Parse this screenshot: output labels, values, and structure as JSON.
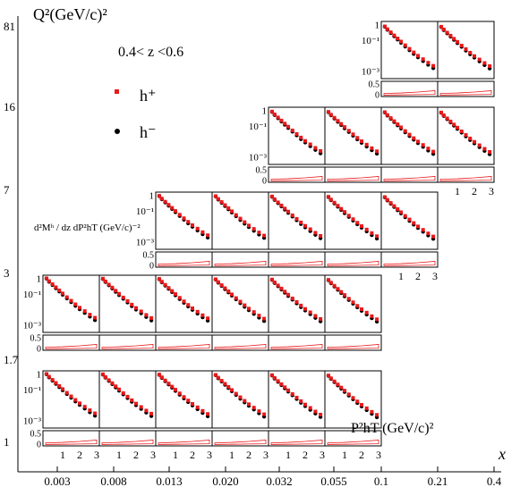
{
  "chart_data": {
    "type": "scatter",
    "title": "0.4< z <0.6",
    "ylabel_outer": "Q²(GeV/c)²",
    "xlabel_outer": "x",
    "ylabel_inner": "d²Mʰ / dz dP²hT (GeV/c)⁻²",
    "xlabel_inner": "P²hT (GeV/c)²",
    "x_bins": [
      "0.003",
      "0.008",
      "0.013",
      "0.020",
      "0.032",
      "0.055",
      "0.1",
      "0.21",
      "0.4"
    ],
    "q2_bins": [
      "1",
      "1.7",
      "3",
      "7",
      "16",
      "81"
    ],
    "inner_yticks": [
      "1",
      "10⁻¹",
      "10⁻³"
    ],
    "inner_xticks": [
      "1",
      "2",
      "3"
    ],
    "ratio_yticks": [
      "0.5",
      "0"
    ],
    "inner_ylog_range": [
      -3.5,
      0.2
    ],
    "inner_xrange": [
      0,
      3
    ],
    "ratio_range": [
      -0.05,
      0.6
    ],
    "legend": {
      "position": "top-left",
      "entries": [
        {
          "label": "h⁺",
          "color": "#e8191a",
          "marker": "square"
        },
        {
          "label": "h⁻",
          "color": "#000000",
          "marker": "circle"
        }
      ]
    },
    "series": [
      {
        "name": "h⁺",
        "color": "#e8191a",
        "x": [
          0.05,
          0.2,
          0.4,
          0.6,
          0.8,
          1.0,
          1.25,
          1.5,
          1.75,
          2.0,
          2.3,
          2.6,
          2.9
        ],
        "log10_y": [
          0.0,
          -0.18,
          -0.38,
          -0.58,
          -0.78,
          -0.98,
          -1.22,
          -1.45,
          -1.68,
          -1.9,
          -2.12,
          -2.35,
          -2.55
        ]
      },
      {
        "name": "h⁻",
        "color": "#000000",
        "x": [
          0.05,
          0.2,
          0.4,
          0.6,
          0.8,
          1.0,
          1.25,
          1.5,
          1.75,
          2.0,
          2.3,
          2.6,
          2.9
        ],
        "log10_y": [
          -0.02,
          -0.22,
          -0.43,
          -0.64,
          -0.85,
          -1.06,
          -1.3,
          -1.54,
          -1.78,
          -2.0,
          -2.24,
          -2.48,
          -2.7
        ]
      }
    ],
    "ratio_band": {
      "x": [
        0,
        1,
        2,
        3
      ],
      "upper": [
        0.08,
        0.1,
        0.14,
        0.2
      ],
      "lower": [
        0.01,
        0.02,
        0.03,
        0.04
      ]
    }
  }
}
